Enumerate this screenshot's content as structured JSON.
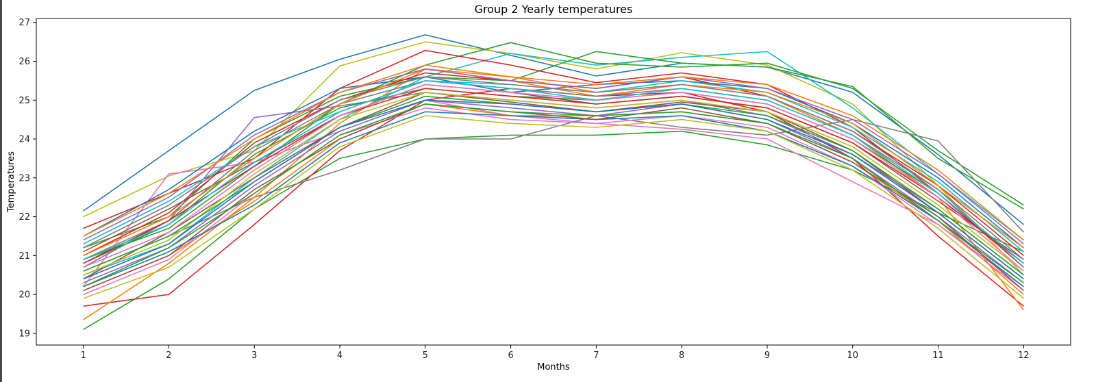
{
  "chart_data": {
    "type": "line",
    "title": "Group 2 Yearly temperatures",
    "xlabel": "Months",
    "ylabel": "Temperatures",
    "x": [
      1,
      2,
      3,
      4,
      5,
      6,
      7,
      8,
      9,
      10,
      11,
      12
    ],
    "xlim": [
      0.45,
      12.55
    ],
    "ylim": [
      18.7,
      27.1
    ],
    "yticks": [
      19,
      20,
      21,
      22,
      23,
      24,
      25,
      26,
      27
    ],
    "grid": false,
    "legend": "none",
    "palette": [
      "#1f77b4",
      "#ff7f0e",
      "#2ca02c",
      "#d62728",
      "#9467bd",
      "#8c564b",
      "#e377c2",
      "#7f7f7f",
      "#bcbd22",
      "#17becf"
    ],
    "series": [
      {
        "color": "#1f77b4",
        "values": [
          22.15,
          23.7,
          25.25,
          26.05,
          26.68,
          26.15,
          25.62,
          25.95,
          25.85,
          25.2,
          23.6,
          21.8
        ]
      },
      {
        "color": "#bcbd22",
        "values": [
          22.0,
          23.05,
          23.7,
          25.88,
          26.5,
          26.2,
          25.8,
          26.22,
          25.9,
          24.9,
          22.8,
          20.5
        ]
      },
      {
        "color": "#2ca02c",
        "values": [
          19.1,
          20.4,
          22.2,
          23.5,
          24.0,
          24.1,
          24.1,
          24.2,
          23.85,
          23.2,
          22.1,
          21.1
        ]
      },
      {
        "color": "#d62728",
        "values": [
          19.7,
          20.0,
          21.8,
          23.7,
          25.0,
          25.3,
          25.1,
          25.2,
          24.7,
          23.5,
          21.5,
          19.7
        ]
      },
      {
        "color": "#17becf",
        "values": [
          20.5,
          21.3,
          23.0,
          24.5,
          25.6,
          26.2,
          25.9,
          26.1,
          26.25,
          24.8,
          23.1,
          21.4
        ]
      },
      {
        "color": "#2ca02c",
        "values": [
          20.9,
          21.7,
          23.3,
          24.9,
          25.9,
          26.48,
          25.95,
          25.85,
          25.95,
          25.3,
          23.7,
          22.3
        ]
      },
      {
        "color": "#2ca02c",
        "values": [
          21.2,
          22.0,
          24.0,
          25.1,
          25.6,
          25.5,
          26.25,
          25.95,
          25.85,
          25.35,
          23.5,
          22.2
        ]
      },
      {
        "color": "#d62728",
        "values": [
          21.7,
          22.6,
          23.5,
          25.3,
          26.28,
          25.9,
          25.45,
          25.7,
          25.4,
          24.3,
          22.6,
          20.7
        ]
      },
      {
        "color": "#e377c2",
        "values": [
          20.2,
          23.1,
          23.4,
          24.2,
          25.0,
          24.6,
          24.4,
          24.25,
          24.0,
          22.9,
          21.8,
          20.2
        ]
      },
      {
        "color": "#7f7f7f",
        "values": [
          20.6,
          21.5,
          22.5,
          23.2,
          24.0,
          24.0,
          24.6,
          24.3,
          24.1,
          24.5,
          23.95,
          21.6
        ]
      },
      {
        "color": "#9467bd",
        "values": [
          20.7,
          21.9,
          24.55,
          24.85,
          25.2,
          25.0,
          24.8,
          25.0,
          24.6,
          23.6,
          22.2,
          20.5
        ]
      },
      {
        "color": "#ff7f0e",
        "values": [
          19.35,
          20.8,
          22.5,
          24.4,
          25.8,
          25.5,
          25.1,
          25.4,
          25.1,
          24.1,
          22.5,
          19.6
        ]
      },
      {
        "color": "#8c564b",
        "values": [
          20.4,
          21.6,
          23.0,
          24.3,
          25.2,
          24.95,
          24.7,
          24.95,
          24.7,
          23.7,
          22.1,
          20.4
        ]
      },
      {
        "color": "#1f77b4",
        "values": [
          21.5,
          22.7,
          24.2,
          25.3,
          25.6,
          25.2,
          25.4,
          25.5,
          25.3,
          24.4,
          23.0,
          21.2
        ]
      },
      {
        "color": "#ff7f0e",
        "values": [
          20.1,
          21.0,
          22.4,
          24.0,
          24.9,
          24.6,
          24.6,
          24.7,
          24.4,
          23.4,
          21.9,
          20.0
        ]
      },
      {
        "color": "#2ca02c",
        "values": [
          20.8,
          21.8,
          23.6,
          24.8,
          25.3,
          25.1,
          25.0,
          25.2,
          24.9,
          24.0,
          22.6,
          20.8
        ]
      },
      {
        "color": "#d62728",
        "values": [
          21.0,
          22.1,
          23.9,
          25.0,
          25.7,
          25.5,
          25.3,
          25.6,
          25.1,
          24.2,
          22.8,
          21.0
        ]
      },
      {
        "color": "#9467bd",
        "values": [
          20.3,
          21.2,
          22.8,
          24.2,
          25.0,
          24.8,
          24.6,
          24.9,
          24.5,
          23.5,
          22.0,
          20.3
        ]
      },
      {
        "color": "#8c564b",
        "values": [
          21.1,
          22.2,
          23.4,
          24.6,
          25.4,
          25.2,
          24.9,
          25.1,
          24.8,
          23.9,
          22.4,
          20.9
        ]
      },
      {
        "color": "#e377c2",
        "values": [
          20.0,
          20.9,
          22.6,
          24.1,
          24.8,
          24.5,
          24.4,
          24.6,
          24.3,
          23.3,
          21.8,
          20.1
        ]
      },
      {
        "color": "#7f7f7f",
        "values": [
          20.9,
          21.9,
          23.7,
          24.9,
          25.5,
          25.3,
          25.1,
          25.3,
          25.0,
          24.1,
          22.7,
          20.7
        ]
      },
      {
        "color": "#bcbd22",
        "values": [
          20.5,
          21.4,
          23.1,
          24.5,
          25.2,
          25.0,
          24.8,
          25.0,
          24.7,
          23.8,
          22.3,
          20.6
        ]
      },
      {
        "color": "#17becf",
        "values": [
          21.3,
          22.4,
          23.8,
          24.7,
          25.5,
          25.4,
          25.2,
          25.5,
          25.2,
          24.3,
          22.9,
          21.1
        ]
      },
      {
        "color": "#1f77b4",
        "values": [
          20.2,
          21.1,
          22.3,
          23.9,
          24.7,
          24.6,
          24.5,
          24.6,
          24.2,
          23.3,
          21.9,
          20.2
        ]
      },
      {
        "color": "#ff7f0e",
        "values": [
          21.0,
          22.0,
          23.5,
          24.9,
          25.8,
          25.6,
          25.2,
          25.4,
          25.2,
          24.4,
          22.8,
          21.2
        ]
      },
      {
        "color": "#2ca02c",
        "values": [
          20.6,
          21.5,
          22.9,
          24.3,
          25.1,
          24.9,
          24.7,
          24.9,
          24.6,
          23.7,
          22.2,
          20.5
        ]
      },
      {
        "color": "#d62728",
        "values": [
          20.8,
          21.9,
          23.3,
          24.6,
          25.3,
          25.1,
          24.9,
          25.1,
          24.8,
          23.9,
          22.5,
          20.8
        ]
      },
      {
        "color": "#9467bd",
        "values": [
          21.4,
          22.5,
          24.1,
          25.2,
          25.8,
          25.5,
          25.3,
          25.6,
          25.3,
          24.5,
          23.1,
          21.3
        ]
      },
      {
        "color": "#8c564b",
        "values": [
          20.1,
          21.0,
          22.7,
          24.0,
          24.9,
          24.7,
          24.5,
          24.8,
          24.4,
          23.4,
          22.0,
          20.1
        ]
      },
      {
        "color": "#e377c2",
        "values": [
          20.7,
          21.6,
          23.2,
          24.6,
          25.4,
          25.2,
          25.0,
          25.2,
          24.9,
          24.0,
          22.5,
          20.6
        ]
      },
      {
        "color": "#7f7f7f",
        "values": [
          21.2,
          22.3,
          23.8,
          25.0,
          25.6,
          25.4,
          25.2,
          25.4,
          25.1,
          24.2,
          22.7,
          20.9
        ]
      },
      {
        "color": "#bcbd22",
        "values": [
          19.9,
          20.7,
          22.2,
          23.8,
          24.6,
          24.4,
          24.3,
          24.5,
          24.2,
          23.2,
          21.7,
          19.9
        ]
      },
      {
        "color": "#17becf",
        "values": [
          20.9,
          21.8,
          23.4,
          24.7,
          25.5,
          25.3,
          25.0,
          25.3,
          25.0,
          24.1,
          22.6,
          20.8
        ]
      },
      {
        "color": "#1f77b4",
        "values": [
          20.4,
          21.3,
          22.9,
          24.3,
          25.0,
          24.9,
          24.7,
          24.9,
          24.5,
          23.6,
          22.1,
          20.4
        ]
      },
      {
        "color": "#ff7f0e",
        "values": [
          21.5,
          22.6,
          24.0,
          25.2,
          25.9,
          25.6,
          25.4,
          25.6,
          25.4,
          24.6,
          23.2,
          21.4
        ]
      },
      {
        "color": "#2ca02c",
        "values": [
          20.2,
          21.2,
          22.6,
          24.1,
          24.9,
          24.7,
          24.6,
          24.7,
          24.4,
          23.5,
          21.9,
          20.3
        ]
      }
    ]
  }
}
